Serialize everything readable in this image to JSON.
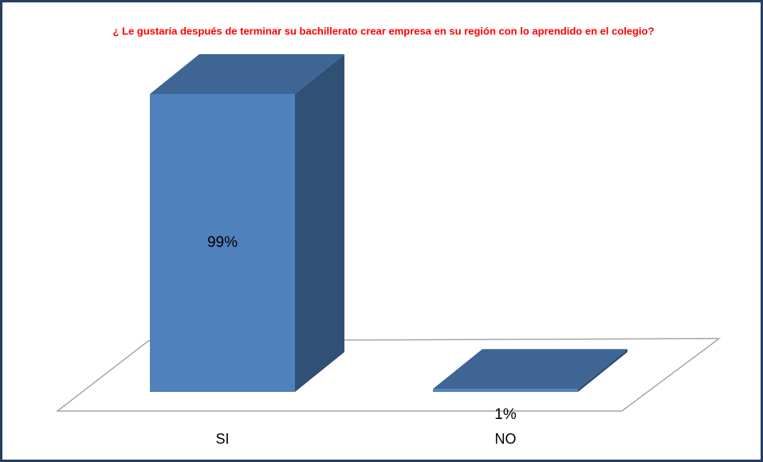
{
  "chart_data": {
    "type": "bar3d",
    "title": "¿ Le gustaría después de  terminar su  bachillerato  crear empresa   en  su región con lo aprendido en el colegio?",
    "categories": [
      "SI",
      "NO"
    ],
    "values": [
      99,
      1
    ],
    "value_labels": [
      "99%",
      "1%"
    ],
    "color": "#4f81bd"
  }
}
